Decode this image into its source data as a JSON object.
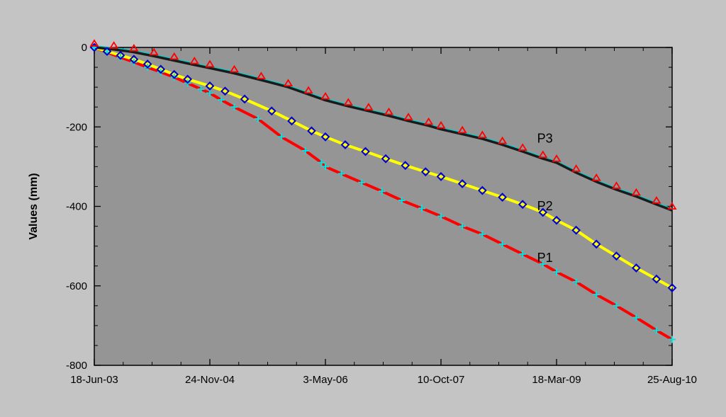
{
  "chart_data": {
    "type": "line",
    "title": "",
    "xlabel": "",
    "ylabel": "Values (mm)",
    "xlim": [
      "2003-06-18",
      "2010-08-25"
    ],
    "ylim": [
      -800,
      0
    ],
    "x_ticks": [
      {
        "date": "2003-06-18",
        "label": "18-Jun-03"
      },
      {
        "date": "2004-11-24",
        "label": "24-Nov-04"
      },
      {
        "date": "2006-05-03",
        "label": "3-May-06"
      },
      {
        "date": "2007-10-10",
        "label": "10-Oct-07"
      },
      {
        "date": "2009-03-18",
        "label": "18-Mar-09"
      },
      {
        "date": "2010-08-25",
        "label": "25-Aug-10"
      }
    ],
    "y_ticks": [
      0,
      -200,
      -400,
      -600,
      -800
    ],
    "grid": false,
    "legend": "none",
    "colors": {
      "plot_background": "#959595",
      "page_background": "#c4c4c4",
      "P1_line": "#ff0000",
      "P1_marker": "#00e5e5",
      "P2_line": "#ffff00",
      "P2_marker": "#0000cc",
      "P3_line": "#1a1a1a",
      "P3_line2": "#00cccc",
      "P3_marker": "#ff0000"
    },
    "series": [
      {
        "name": "P1",
        "marker": "plus",
        "points": [
          [
            "2003-06-18",
            0
          ],
          [
            "2003-08-15",
            -12
          ],
          [
            "2003-10-15",
            -25
          ],
          [
            "2003-12-15",
            -37
          ],
          [
            "2004-02-15",
            -50
          ],
          [
            "2004-04-15",
            -62
          ],
          [
            "2004-06-15",
            -75
          ],
          [
            "2004-08-15",
            -90
          ],
          [
            "2004-10-15",
            -105
          ],
          [
            "2004-11-24",
            -115
          ],
          [
            "2005-01-15",
            -132
          ],
          [
            "2005-03-15",
            -150
          ],
          [
            "2005-07-01",
            -180
          ],
          [
            "2005-10-15",
            -225
          ],
          [
            "2006-02-01",
            -260
          ],
          [
            "2006-04-15",
            -290
          ],
          [
            "2006-05-03",
            -300
          ],
          [
            "2006-07-15",
            -318
          ],
          [
            "2006-10-15",
            -340
          ],
          [
            "2007-01-15",
            -362
          ],
          [
            "2007-04-15",
            -385
          ],
          [
            "2007-07-15",
            -405
          ],
          [
            "2007-10-10",
            -425
          ],
          [
            "2008-01-15",
            -450
          ],
          [
            "2008-04-15",
            -470
          ],
          [
            "2008-07-15",
            -495
          ],
          [
            "2008-10-15",
            -520
          ],
          [
            "2009-01-15",
            -545
          ],
          [
            "2009-03-18",
            -565
          ],
          [
            "2009-06-15",
            -590
          ],
          [
            "2009-09-15",
            -622
          ],
          [
            "2009-12-15",
            -650
          ],
          [
            "2010-03-15",
            -680
          ],
          [
            "2010-06-15",
            -712
          ],
          [
            "2010-08-25",
            -735
          ]
        ]
      },
      {
        "name": "P2",
        "marker": "diamond",
        "points": [
          [
            "2003-06-18",
            0
          ],
          [
            "2003-08-15",
            -10
          ],
          [
            "2003-10-15",
            -20
          ],
          [
            "2003-12-15",
            -30
          ],
          [
            "2004-02-15",
            -42
          ],
          [
            "2004-04-15",
            -55
          ],
          [
            "2004-06-15",
            -68
          ],
          [
            "2004-08-15",
            -80
          ],
          [
            "2004-11-24",
            -97
          ],
          [
            "2005-02-01",
            -110
          ],
          [
            "2005-05-01",
            -130
          ],
          [
            "2005-09-01",
            -160
          ],
          [
            "2005-12-01",
            -185
          ],
          [
            "2006-03-01",
            -210
          ],
          [
            "2006-05-03",
            -225
          ],
          [
            "2006-08-01",
            -245
          ],
          [
            "2006-11-01",
            -262
          ],
          [
            "2007-02-01",
            -280
          ],
          [
            "2007-05-01",
            -297
          ],
          [
            "2007-08-01",
            -313
          ],
          [
            "2007-10-10",
            -325
          ],
          [
            "2008-01-15",
            -343
          ],
          [
            "2008-04-15",
            -360
          ],
          [
            "2008-07-15",
            -377
          ],
          [
            "2008-10-15",
            -395
          ],
          [
            "2009-01-15",
            -415
          ],
          [
            "2009-03-18",
            -435
          ],
          [
            "2009-06-15",
            -460
          ],
          [
            "2009-09-15",
            -495
          ],
          [
            "2009-12-15",
            -525
          ],
          [
            "2010-03-15",
            -555
          ],
          [
            "2010-06-15",
            -583
          ],
          [
            "2010-08-25",
            -605
          ]
        ]
      },
      {
        "name": "P3",
        "marker": "triangle",
        "points": [
          [
            "2003-06-18",
            0
          ],
          [
            "2003-09-15",
            -5
          ],
          [
            "2003-12-15",
            -12
          ],
          [
            "2004-03-15",
            -22
          ],
          [
            "2004-06-15",
            -33
          ],
          [
            "2004-09-15",
            -44
          ],
          [
            "2004-11-24",
            -52
          ],
          [
            "2005-03-15",
            -65
          ],
          [
            "2005-07-15",
            -82
          ],
          [
            "2005-11-15",
            -100
          ],
          [
            "2006-02-15",
            -118
          ],
          [
            "2006-05-03",
            -133
          ],
          [
            "2006-08-15",
            -148
          ],
          [
            "2006-11-15",
            -160
          ],
          [
            "2007-02-15",
            -172
          ],
          [
            "2007-05-15",
            -185
          ],
          [
            "2007-08-15",
            -197
          ],
          [
            "2007-10-10",
            -206
          ],
          [
            "2008-01-15",
            -218
          ],
          [
            "2008-04-15",
            -230
          ],
          [
            "2008-07-15",
            -245
          ],
          [
            "2008-10-15",
            -262
          ],
          [
            "2009-01-15",
            -280
          ],
          [
            "2009-03-18",
            -290
          ],
          [
            "2009-06-15",
            -315
          ],
          [
            "2009-09-15",
            -338
          ],
          [
            "2009-12-15",
            -358
          ],
          [
            "2010-03-15",
            -375
          ],
          [
            "2010-06-15",
            -395
          ],
          [
            "2010-08-25",
            -410
          ]
        ]
      }
    ],
    "annotations": [
      {
        "text": "P3",
        "date": "2008-12-20",
        "value": -240
      },
      {
        "text": "P2",
        "date": "2008-12-20",
        "value": -410
      },
      {
        "text": "P1",
        "date": "2008-12-20",
        "value": -540
      }
    ]
  }
}
